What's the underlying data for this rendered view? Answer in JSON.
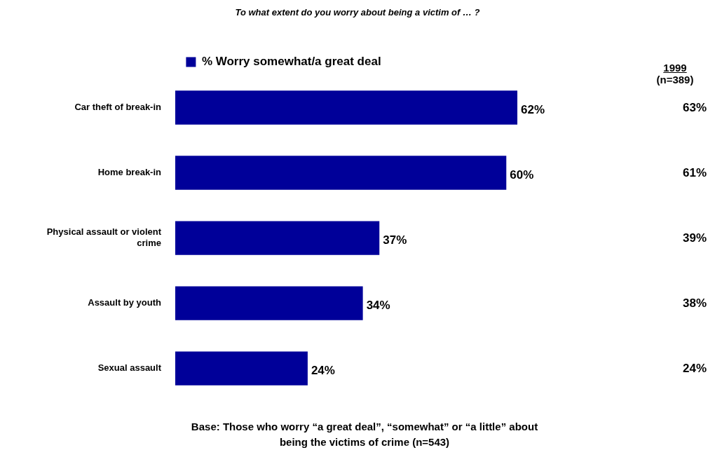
{
  "chart_data": {
    "type": "bar",
    "orientation": "horizontal",
    "title": "To what extent do you worry about being a victim of … ?",
    "categories": [
      "Car theft of break-in",
      "Home break-in",
      "Physical assault or violent crime",
      "Assault by youth",
      "Sexual assault"
    ],
    "series": [
      {
        "name": "% Worry somewhat/a great deal",
        "color": "#000099",
        "values": [
          62,
          60,
          37,
          34,
          24
        ],
        "value_labels": [
          "62%",
          "60%",
          "37%",
          "34%",
          "24%"
        ]
      }
    ],
    "legend": "top",
    "tick_labels": "y",
    "annotations": [
      "1999",
      "(n=389)",
      "63%",
      "61%",
      "39%",
      "38%",
      "24%",
      "Base: Those who worry “a great deal”, “somewhat” or “a little” about being the victims of crime (n=543)"
    ]
  }
}
